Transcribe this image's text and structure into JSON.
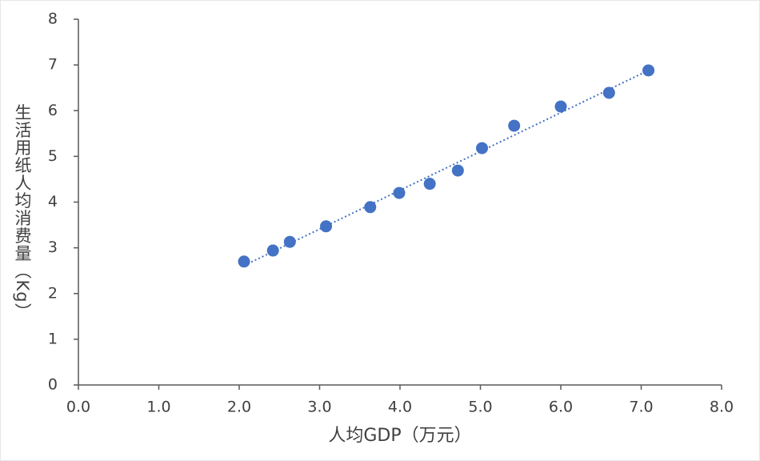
{
  "chart_data": {
    "type": "scatter",
    "x_label": "人均GDP（万元）",
    "y_label": "生活用纸人均消费量（Kg）",
    "series": [
      {
        "color": "#4472c4",
        "x": [
          2.06,
          2.42,
          2.63,
          3.08,
          3.63,
          3.99,
          4.37,
          4.72,
          5.02,
          5.42,
          6.0,
          6.6,
          7.09
        ],
        "values": [
          2.7,
          2.94,
          3.13,
          3.47,
          3.89,
          4.2,
          4.4,
          4.69,
          5.18,
          5.67,
          6.09,
          6.39,
          6.88
        ]
      }
    ],
    "trendline": "linear",
    "xlim": [
      0,
      8
    ],
    "xticks": [
      {
        "value": 0,
        "label": "0.0"
      },
      {
        "value": 1,
        "label": "1.0"
      },
      {
        "value": 2,
        "label": "2.0"
      },
      {
        "value": 3,
        "label": "3.0"
      },
      {
        "value": 4,
        "label": "4.0"
      },
      {
        "value": 5,
        "label": "5.0"
      },
      {
        "value": 6,
        "label": "6.0"
      },
      {
        "value": 7,
        "label": "7.0"
      },
      {
        "value": 8,
        "label": "8.0"
      }
    ],
    "ylim": [
      0,
      8
    ],
    "yticks": [
      0,
      1,
      2,
      3,
      4,
      5,
      6,
      7,
      8
    ]
  }
}
